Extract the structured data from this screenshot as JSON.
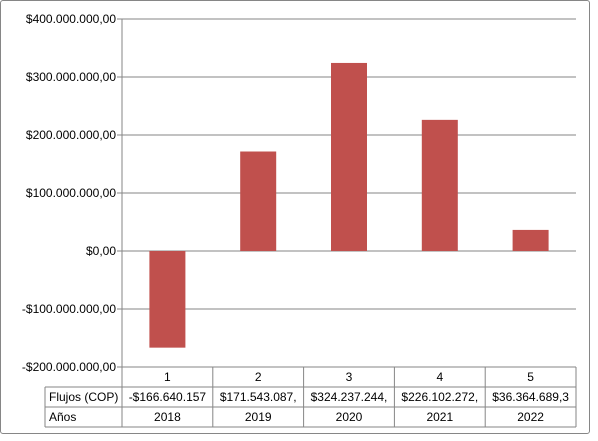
{
  "chart_data": {
    "type": "bar",
    "categories": [
      "1",
      "2",
      "3",
      "4",
      "5"
    ],
    "series": [
      {
        "name": "Flujos (COP)",
        "values": [
          -166640157,
          171543087,
          324237244,
          226102272,
          36364689.3
        ]
      }
    ],
    "bar_color": "#c0504d",
    "ylim": [
      -200000000,
      400000000
    ],
    "y_ticks": [
      {
        "value": 400000000,
        "label": "$400.000.000,00"
      },
      {
        "value": 300000000,
        "label": "$300.000.000,00"
      },
      {
        "value": 200000000,
        "label": "$200.000.000,00"
      },
      {
        "value": 100000000,
        "label": "$100.000.000,00"
      },
      {
        "value": 0,
        "label": "$0,00"
      },
      {
        "value": -100000000,
        "label": "-$100.000.000,00"
      },
      {
        "value": -200000000,
        "label": "-$200.000.000,00"
      }
    ],
    "grid": true,
    "data_table": {
      "rows": [
        {
          "header": "Flujos (COP)",
          "cells": [
            "-$166.640.157",
            "$171.543.087,",
            "$324.237.244,",
            "$226.102.272,",
            "$36.364.689,3"
          ]
        },
        {
          "header": "Años",
          "cells": [
            "2018",
            "2019",
            "2020",
            "2021",
            "2022"
          ]
        }
      ]
    }
  }
}
